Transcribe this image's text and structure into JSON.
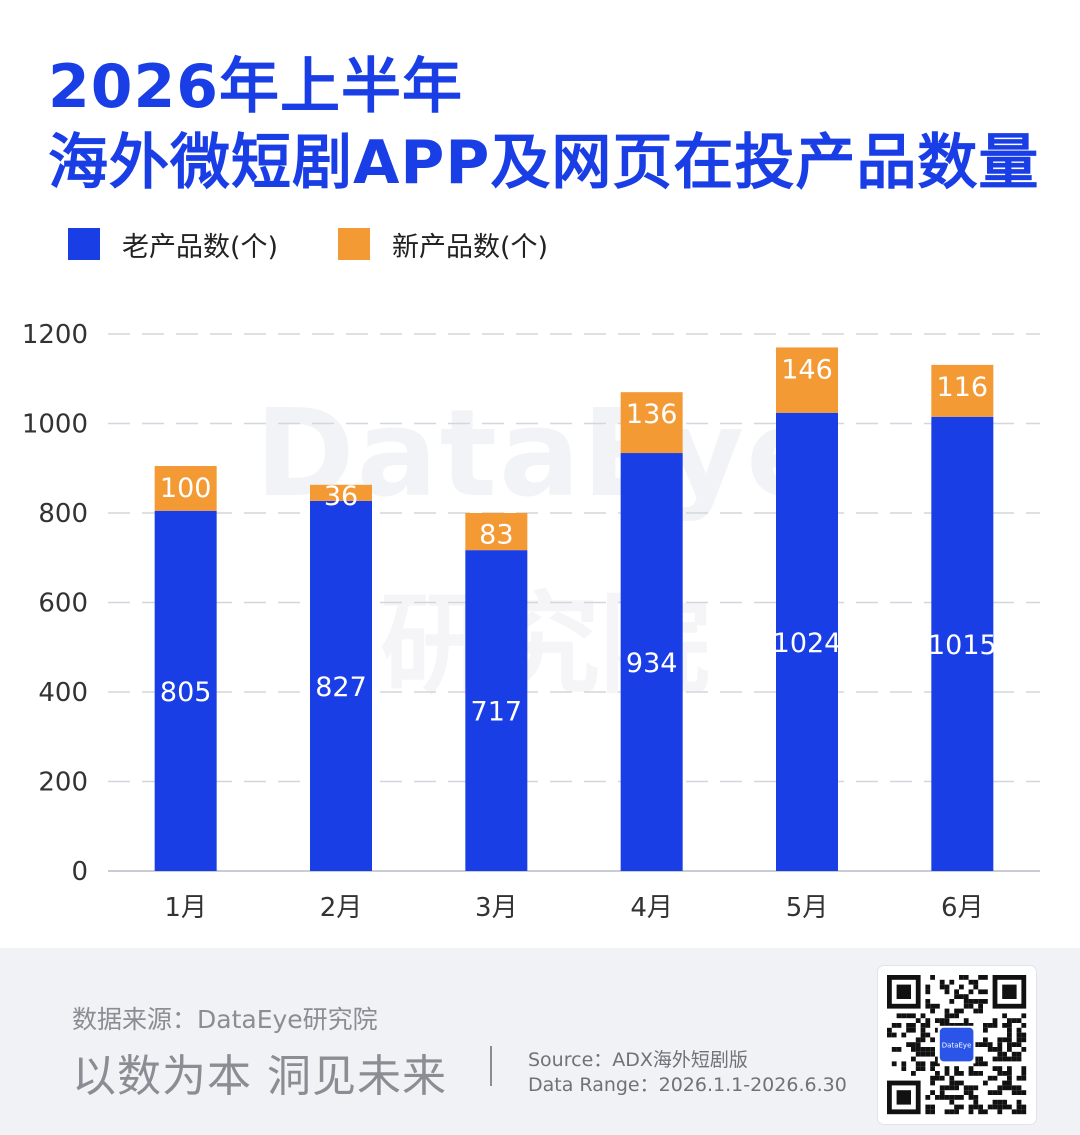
{
  "title": {
    "line1": "2026年上半年",
    "line2": "海外微短剧APP及网页在投产品数量"
  },
  "legend": [
    {
      "label": "老产品数(个)",
      "color": "#1a3ee6"
    },
    {
      "label": "新产品数(个)",
      "color": "#f39a35"
    }
  ],
  "watermark": {
    "line1": "DataEye",
    "line2": "研究院"
  },
  "chart_data": {
    "type": "bar",
    "stacked": true,
    "categories": [
      "1月",
      "2月",
      "3月",
      "4月",
      "5月",
      "6月"
    ],
    "series": [
      {
        "name": "老产品数(个)",
        "color": "#1a3ee6",
        "values": [
          805,
          827,
          717,
          934,
          1024,
          1015
        ]
      },
      {
        "name": "新产品数(个)",
        "color": "#f39a35",
        "values": [
          100,
          36,
          83,
          136,
          146,
          116
        ]
      }
    ],
    "y_ticks": [
      0,
      200,
      400,
      600,
      800,
      1000,
      1200
    ],
    "ylim": [
      0,
      1200
    ],
    "grid": true,
    "grid_style": "dashed",
    "legend_position": "top-left"
  },
  "footer": {
    "source": "数据来源：DataEye研究院",
    "slogan": "以数为本 洞见未来",
    "source_detail": "Source：ADX海外短剧版",
    "data_range": "Data Range：2026.1.1-2026.6.30",
    "qr_badge": "DataEye"
  }
}
